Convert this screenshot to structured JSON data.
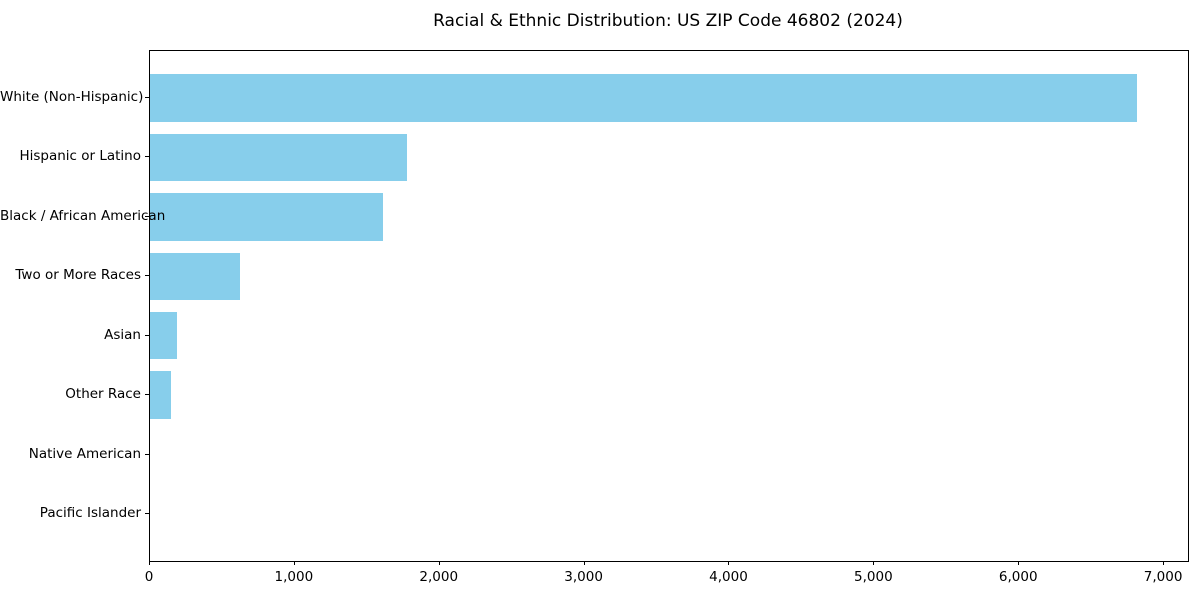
{
  "chart_data": {
    "type": "bar",
    "orientation": "horizontal",
    "title": "Racial & Ethnic Distribution: US ZIP Code 46802 (2024)",
    "categories": [
      "White (Non-Hispanic)",
      "Hispanic or Latino",
      "Black / African American",
      "Two or More Races",
      "Asian",
      "Other Race",
      "Native American",
      "Pacific Islander"
    ],
    "values": [
      6810,
      1775,
      1610,
      620,
      185,
      145,
      0,
      0
    ],
    "bar_color": "#87CEEB",
    "xlabel": "",
    "ylabel": "",
    "xlim": [
      0,
      7165
    ],
    "x_ticks": [
      {
        "value": 0,
        "label": "0"
      },
      {
        "value": 1000,
        "label": "1,000"
      },
      {
        "value": 2000,
        "label": "2,000"
      },
      {
        "value": 3000,
        "label": "3,000"
      },
      {
        "value": 4000,
        "label": "4,000"
      },
      {
        "value": 5000,
        "label": "5,000"
      },
      {
        "value": 6000,
        "label": "6,000"
      },
      {
        "value": 7000,
        "label": "7,000"
      }
    ],
    "grid": false,
    "legend_position": "none"
  }
}
